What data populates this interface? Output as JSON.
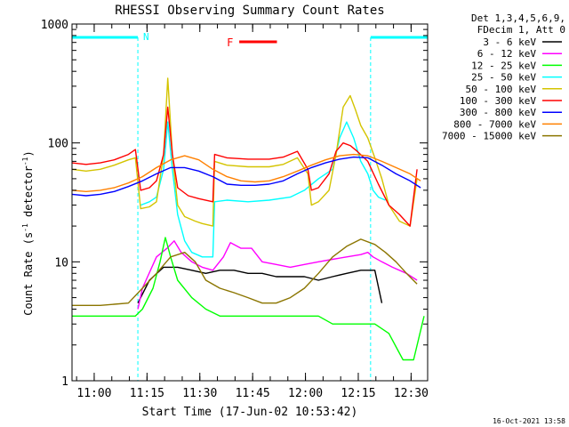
{
  "chart_data": {
    "type": "line",
    "title": "RHESSI Observing Summary Count Rates",
    "ylabel_main": "Count Rate (s",
    "ylabel_sup1": "-1",
    "ylabel_mid": " detector",
    "ylabel_sup2": "-1",
    "ylabel_end": ")",
    "xlabel": "Start Time (17-Jun-02 10:53:42)",
    "yscale": "log",
    "ylim": [
      1,
      1000
    ],
    "xlim_minutes": [
      0,
      101
    ],
    "y_ticks": [
      {
        "v": 1,
        "t": "1"
      },
      {
        "v": 10,
        "t": "10"
      },
      {
        "v": 100,
        "t": "100"
      },
      {
        "v": 1000,
        "t": "1000"
      }
    ],
    "x_ticks": [
      {
        "v": 6.3,
        "t": "11:00"
      },
      {
        "v": 21.3,
        "t": "11:15"
      },
      {
        "v": 36.3,
        "t": "11:30"
      },
      {
        "v": 51.3,
        "t": "11:45"
      },
      {
        "v": 66.3,
        "t": "12:00"
      },
      {
        "v": 81.3,
        "t": "12:15"
      },
      {
        "v": 96.3,
        "t": "12:30"
      }
    ],
    "legend_header": [
      "Det 1,3,4,5,6,9,",
      "FDecim 1, Att 0"
    ],
    "legend": [
      {
        "label": "3 - 6 keV",
        "color": "#000000"
      },
      {
        "label": "6 - 12 keV",
        "color": "#ff00ff"
      },
      {
        "label": "12 - 25 keV",
        "color": "#00ff00"
      },
      {
        "label": "25 - 50 keV",
        "color": "#00ffff"
      },
      {
        "label": "50 - 100 keV",
        "color": "#d4c400"
      },
      {
        "label": "100 - 300 keV",
        "color": "#ff0000"
      },
      {
        "label": "300 - 800 keV",
        "color": "#0000ff"
      },
      {
        "label": "800 - 7000 keV",
        "color": "#ff8000"
      },
      {
        "label": "7000 - 15000 keV",
        "color": "#8b7500"
      }
    ],
    "annotations": [
      {
        "text": "N",
        "color": "#00ffff"
      },
      {
        "text": "F",
        "color": "#ff0000"
      }
    ],
    "night_intervals_minutes": [
      [
        0,
        18.7
      ],
      [
        84.8,
        101
      ]
    ],
    "flare_interval_minutes": [
      47.5,
      58.2
    ],
    "series": [
      {
        "name": "3 - 6 keV",
        "color": "#000000",
        "points": [
          [
            18.7,
            4.5
          ],
          [
            22,
            7
          ],
          [
            26,
            9
          ],
          [
            30,
            9
          ],
          [
            34,
            8.5
          ],
          [
            38,
            8
          ],
          [
            42,
            8.5
          ],
          [
            46,
            8.5
          ],
          [
            50,
            8
          ],
          [
            54,
            8
          ],
          [
            58,
            7.5
          ],
          [
            62,
            7.5
          ],
          [
            66,
            7.5
          ],
          [
            70,
            7
          ],
          [
            74,
            7.5
          ],
          [
            78,
            8
          ],
          [
            82,
            8.5
          ],
          [
            86,
            8.5
          ],
          [
            88,
            4.5
          ]
        ]
      },
      {
        "name": "6 - 12 keV",
        "color": "#ff00ff",
        "points": [
          [
            18.7,
            4
          ],
          [
            20,
            6
          ],
          [
            24,
            11
          ],
          [
            27,
            13
          ],
          [
            29,
            15
          ],
          [
            31,
            12
          ],
          [
            34,
            10
          ],
          [
            37,
            9
          ],
          [
            40,
            8.5
          ],
          [
            43,
            11
          ],
          [
            45,
            14.5
          ],
          [
            48,
            13
          ],
          [
            51,
            13
          ],
          [
            54,
            10
          ],
          [
            58,
            9.5
          ],
          [
            62,
            9
          ],
          [
            66,
            9.5
          ],
          [
            70,
            10
          ],
          [
            74,
            10.5
          ],
          [
            78,
            11
          ],
          [
            82,
            11.5
          ],
          [
            84,
            12
          ],
          [
            85.5,
            11
          ],
          [
            88,
            10
          ],
          [
            91,
            9
          ],
          [
            95,
            8
          ],
          [
            98,
            7
          ]
        ]
      },
      {
        "name": "12 - 25 keV",
        "color": "#00ff00",
        "points": [
          [
            0,
            3.5
          ],
          [
            8,
            3.5
          ],
          [
            18,
            3.5
          ],
          [
            20,
            4
          ],
          [
            23,
            6
          ],
          [
            25,
            10
          ],
          [
            26.5,
            16
          ],
          [
            28,
            11
          ],
          [
            30,
            7
          ],
          [
            34,
            5
          ],
          [
            38,
            4
          ],
          [
            42,
            3.5
          ],
          [
            46,
            3.5
          ],
          [
            50,
            3.5
          ],
          [
            54,
            3.5
          ],
          [
            58,
            3.5
          ],
          [
            62,
            3.5
          ],
          [
            66,
            3.5
          ],
          [
            70,
            3.5
          ],
          [
            74,
            3
          ],
          [
            78,
            3
          ],
          [
            82,
            3
          ],
          [
            86,
            3
          ],
          [
            90,
            2.5
          ],
          [
            94,
            1.5
          ],
          [
            97,
            1.5
          ],
          [
            100,
            3.5
          ]
        ]
      },
      {
        "name": "25 - 50 keV",
        "color": "#00ffff",
        "points": [
          [
            19.5,
            30
          ],
          [
            22,
            32
          ],
          [
            24,
            35
          ],
          [
            26,
            60
          ],
          [
            27.2,
            150
          ],
          [
            28.5,
            60
          ],
          [
            30,
            25
          ],
          [
            32,
            15
          ],
          [
            34,
            12
          ],
          [
            37,
            11
          ],
          [
            40,
            11
          ],
          [
            40.5,
            32
          ],
          [
            44,
            33
          ],
          [
            50,
            32
          ],
          [
            56,
            33
          ],
          [
            62,
            35
          ],
          [
            66,
            40
          ],
          [
            70,
            50
          ],
          [
            74,
            60
          ],
          [
            76,
            110
          ],
          [
            78,
            150
          ],
          [
            80,
            110
          ],
          [
            82,
            70
          ],
          [
            84,
            55
          ],
          [
            85.5,
            40
          ],
          [
            87,
            35
          ],
          [
            89,
            33
          ]
        ]
      },
      {
        "name": "50 - 100 keV",
        "color": "#d4c400",
        "points": [
          [
            0,
            60
          ],
          [
            4,
            58
          ],
          [
            8,
            60
          ],
          [
            12,
            65
          ],
          [
            16,
            72
          ],
          [
            18,
            75
          ],
          [
            19.5,
            28
          ],
          [
            22,
            29
          ],
          [
            24,
            32
          ],
          [
            26,
            80
          ],
          [
            27.2,
            350
          ],
          [
            28.5,
            80
          ],
          [
            30,
            30
          ],
          [
            32,
            24
          ],
          [
            35,
            22
          ],
          [
            37,
            21
          ],
          [
            40,
            20
          ],
          [
            40.5,
            70
          ],
          [
            44,
            65
          ],
          [
            50,
            63
          ],
          [
            56,
            63
          ],
          [
            60,
            66
          ],
          [
            64,
            75
          ],
          [
            67,
            55
          ],
          [
            68,
            30
          ],
          [
            70,
            32
          ],
          [
            73,
            40
          ],
          [
            75,
            80
          ],
          [
            77,
            200
          ],
          [
            79,
            250
          ],
          [
            80.5,
            190
          ],
          [
            82,
            140
          ],
          [
            84,
            110
          ],
          [
            86,
            75
          ],
          [
            88,
            50
          ],
          [
            90,
            30
          ],
          [
            93,
            22
          ],
          [
            96,
            20
          ],
          [
            98,
            50
          ]
        ]
      },
      {
        "name": "100 - 300 keV",
        "color": "#ff0000",
        "points": [
          [
            0,
            68
          ],
          [
            4,
            66
          ],
          [
            8,
            68
          ],
          [
            12,
            72
          ],
          [
            16,
            80
          ],
          [
            18,
            88
          ],
          [
            19.5,
            40
          ],
          [
            22,
            42
          ],
          [
            24,
            48
          ],
          [
            26,
            80
          ],
          [
            27.2,
            200
          ],
          [
            28.5,
            80
          ],
          [
            30,
            42
          ],
          [
            33,
            36
          ],
          [
            36,
            34
          ],
          [
            40,
            32
          ],
          [
            40.5,
            80
          ],
          [
            44,
            75
          ],
          [
            50,
            73
          ],
          [
            56,
            73
          ],
          [
            60,
            76
          ],
          [
            64,
            85
          ],
          [
            67,
            60
          ],
          [
            68,
            40
          ],
          [
            70,
            42
          ],
          [
            73,
            55
          ],
          [
            75,
            85
          ],
          [
            77,
            100
          ],
          [
            79,
            95
          ],
          [
            81,
            85
          ],
          [
            84,
            70
          ],
          [
            87,
            45
          ],
          [
            90,
            30
          ],
          [
            93,
            25
          ],
          [
            96,
            20
          ],
          [
            98,
            60
          ]
        ]
      },
      {
        "name": "300 - 800 keV",
        "color": "#0000ff",
        "points": [
          [
            0,
            37
          ],
          [
            4,
            36
          ],
          [
            8,
            37
          ],
          [
            12,
            39
          ],
          [
            16,
            43
          ],
          [
            20,
            48
          ],
          [
            24,
            55
          ],
          [
            28,
            62
          ],
          [
            32,
            62
          ],
          [
            36,
            58
          ],
          [
            40,
            52
          ],
          [
            44,
            45
          ],
          [
            48,
            44
          ],
          [
            52,
            44
          ],
          [
            56,
            45
          ],
          [
            60,
            48
          ],
          [
            64,
            55
          ],
          [
            68,
            62
          ],
          [
            72,
            68
          ],
          [
            76,
            73
          ],
          [
            80,
            76
          ],
          [
            84,
            75
          ],
          [
            88,
            65
          ],
          [
            92,
            55
          ],
          [
            96,
            48
          ],
          [
            99,
            42
          ]
        ]
      },
      {
        "name": "800 - 7000 keV",
        "color": "#ff8000",
        "points": [
          [
            0,
            40
          ],
          [
            4,
            39
          ],
          [
            8,
            40
          ],
          [
            12,
            42
          ],
          [
            16,
            46
          ],
          [
            20,
            52
          ],
          [
            24,
            62
          ],
          [
            28,
            72
          ],
          [
            32,
            78
          ],
          [
            36,
            72
          ],
          [
            40,
            60
          ],
          [
            44,
            52
          ],
          [
            48,
            48
          ],
          [
            52,
            47
          ],
          [
            56,
            48
          ],
          [
            60,
            52
          ],
          [
            64,
            58
          ],
          [
            68,
            65
          ],
          [
            72,
            72
          ],
          [
            76,
            78
          ],
          [
            80,
            80
          ],
          [
            84,
            78
          ],
          [
            88,
            70
          ],
          [
            92,
            62
          ],
          [
            96,
            55
          ],
          [
            99,
            48
          ]
        ]
      },
      {
        "name": "7000 - 15000 keV",
        "color": "#8b7500",
        "points": [
          [
            0,
            4.3
          ],
          [
            8,
            4.3
          ],
          [
            16,
            4.5
          ],
          [
            20,
            6
          ],
          [
            24,
            8
          ],
          [
            28,
            11
          ],
          [
            32,
            12
          ],
          [
            35,
            10
          ],
          [
            38,
            7
          ],
          [
            42,
            6
          ],
          [
            46,
            5.5
          ],
          [
            50,
            5
          ],
          [
            54,
            4.5
          ],
          [
            58,
            4.5
          ],
          [
            62,
            5
          ],
          [
            66,
            6
          ],
          [
            70,
            8
          ],
          [
            74,
            11
          ],
          [
            78,
            13.5
          ],
          [
            82,
            15.5
          ],
          [
            86,
            14
          ],
          [
            89,
            12
          ],
          [
            92,
            10
          ],
          [
            95,
            8
          ],
          [
            98,
            6.5
          ]
        ]
      }
    ]
  },
  "footer_timestamp": "16-Oct-2021 13:58"
}
